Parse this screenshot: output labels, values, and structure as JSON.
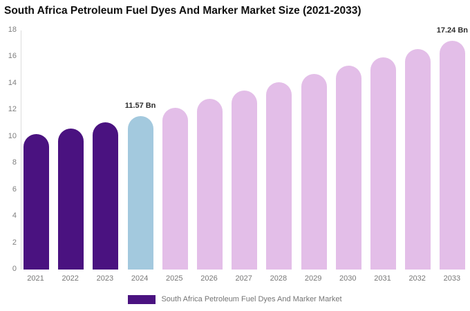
{
  "title": "South Africa Petroleum Fuel Dyes And Marker Market Size (2021-2033)",
  "chart_data": {
    "type": "bar",
    "title": "South Africa Petroleum Fuel Dyes And Marker Market Size (2021-2033)",
    "categories": [
      "2021",
      "2022",
      "2023",
      "2024",
      "2025",
      "2026",
      "2027",
      "2028",
      "2029",
      "2030",
      "2031",
      "2032",
      "2033"
    ],
    "values": [
      10.2,
      10.62,
      11.09,
      11.57,
      12.2,
      12.83,
      13.46,
      14.09,
      14.72,
      15.35,
      15.98,
      16.61,
      17.24
    ],
    "unit": "Bn",
    "xlabel": "",
    "ylabel": "",
    "ylim": [
      0,
      18
    ],
    "yticks": [
      0,
      2,
      4,
      6,
      8,
      10,
      12,
      14,
      16,
      18
    ],
    "grid": false,
    "legend_position": "bottom",
    "data_labels": [
      {
        "category": "2024",
        "text": "11.57 Bn"
      },
      {
        "category": "2033",
        "text": "17.24 Bn"
      }
    ],
    "colors": {
      "historical": "#4A1280",
      "highlight": "#A3C9DE",
      "forecast": "#E3BEE8"
    },
    "color_roles": [
      "historical",
      "historical",
      "historical",
      "highlight",
      "forecast",
      "forecast",
      "forecast",
      "forecast",
      "forecast",
      "forecast",
      "forecast",
      "forecast",
      "forecast"
    ]
  },
  "legend": {
    "label": "South Africa Petroleum Fuel Dyes And Marker Market",
    "swatch_color": "#4A1280"
  }
}
